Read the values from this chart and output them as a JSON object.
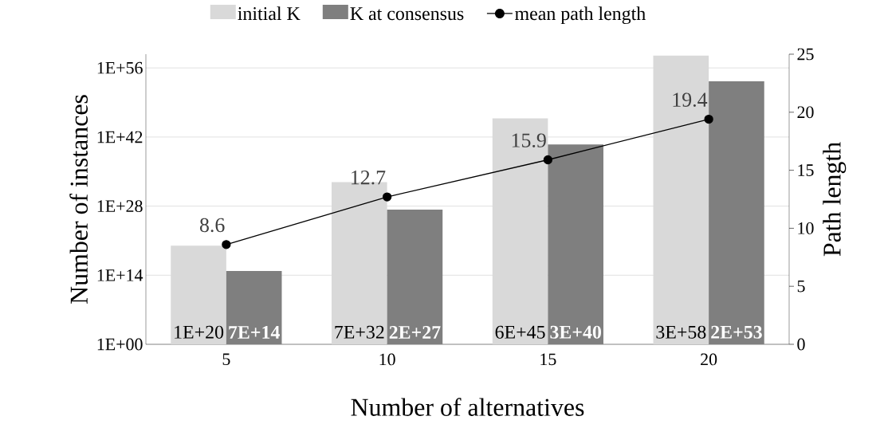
{
  "chart_data": {
    "type": "bar",
    "xlabel": "Number of alternatives",
    "ylabel": "Number of instances",
    "y2label": "Path length",
    "categories": [
      "5",
      "10",
      "15",
      "20"
    ],
    "series": [
      {
        "name": "initial K",
        "color": "#d9d9d9",
        "values": [
          1e+20,
          7e+32,
          6e+45,
          3e+58
        ],
        "value_labels": [
          "1E+20",
          "7E+32",
          "6E+45",
          "3E+58"
        ]
      },
      {
        "name": "K at consensus",
        "color": "#7f7f7f",
        "values": [
          700000000000000.0,
          2e+27,
          3e+40,
          2e+53
        ],
        "value_labels": [
          "7E+14",
          "2E+27",
          "3E+40",
          "2E+53"
        ]
      },
      {
        "name": "mean path length",
        "type": "line",
        "axis": "y2",
        "color": "#000000",
        "marker": "circle",
        "values": [
          8.6,
          12.7,
          15.9,
          19.4
        ],
        "value_labels": [
          "8.6",
          "12.7",
          "15.9",
          "19.4"
        ]
      }
    ],
    "log": "y",
    "ylim": [
      1,
      6e+58
    ],
    "yticks": [
      {
        "value": 1,
        "label": "1E+00"
      },
      {
        "value": 100000000000000.0,
        "label": "1E+14"
      },
      {
        "value": 1e+28,
        "label": "1E+28"
      },
      {
        "value": 1e+42,
        "label": "1E+42"
      },
      {
        "value": 1e+56,
        "label": "1E+56"
      }
    ],
    "y2lim": [
      0,
      25
    ],
    "y2ticks": [
      0,
      5,
      10,
      15,
      20,
      25
    ],
    "grid": "y",
    "legend": "top"
  }
}
